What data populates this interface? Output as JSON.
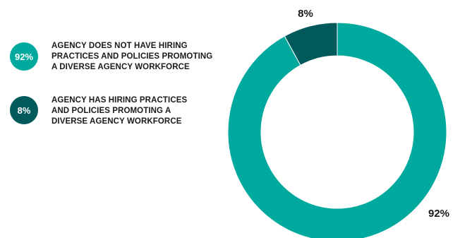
{
  "chart_data": {
    "type": "pie",
    "variant": "donut",
    "categories": [
      "AGENCY DOES NOT HAVE HIRING PRACTICES AND POLICIES PROMOTING A DIVERSE AGENCY WORKFORCE",
      "AGENCY HAS HIRING PRACTICES AND POLICIES PROMOTING A DIVERSE AGENCY WORKFORCE"
    ],
    "values": [
      92,
      8
    ],
    "unit": "%",
    "colors": [
      "#00a99d",
      "#005a5b"
    ],
    "legend_placement": "left",
    "data_labels": [
      "92%",
      "8%"
    ],
    "legend": [
      {
        "badge": "92%",
        "text": "AGENCY DOES NOT HAVE HIRING\nPRACTICES AND POLICIES PROMOTING\nA DIVERSE AGENCY WORKFORCE",
        "color": "#00a99d"
      },
      {
        "badge": "8%",
        "text": "AGENCY HAS HIRING PRACTICES\nAND POLICIES PROMOTING A\nDIVERSE AGENCY WORKFORCE",
        "color": "#005a5b"
      }
    ]
  }
}
